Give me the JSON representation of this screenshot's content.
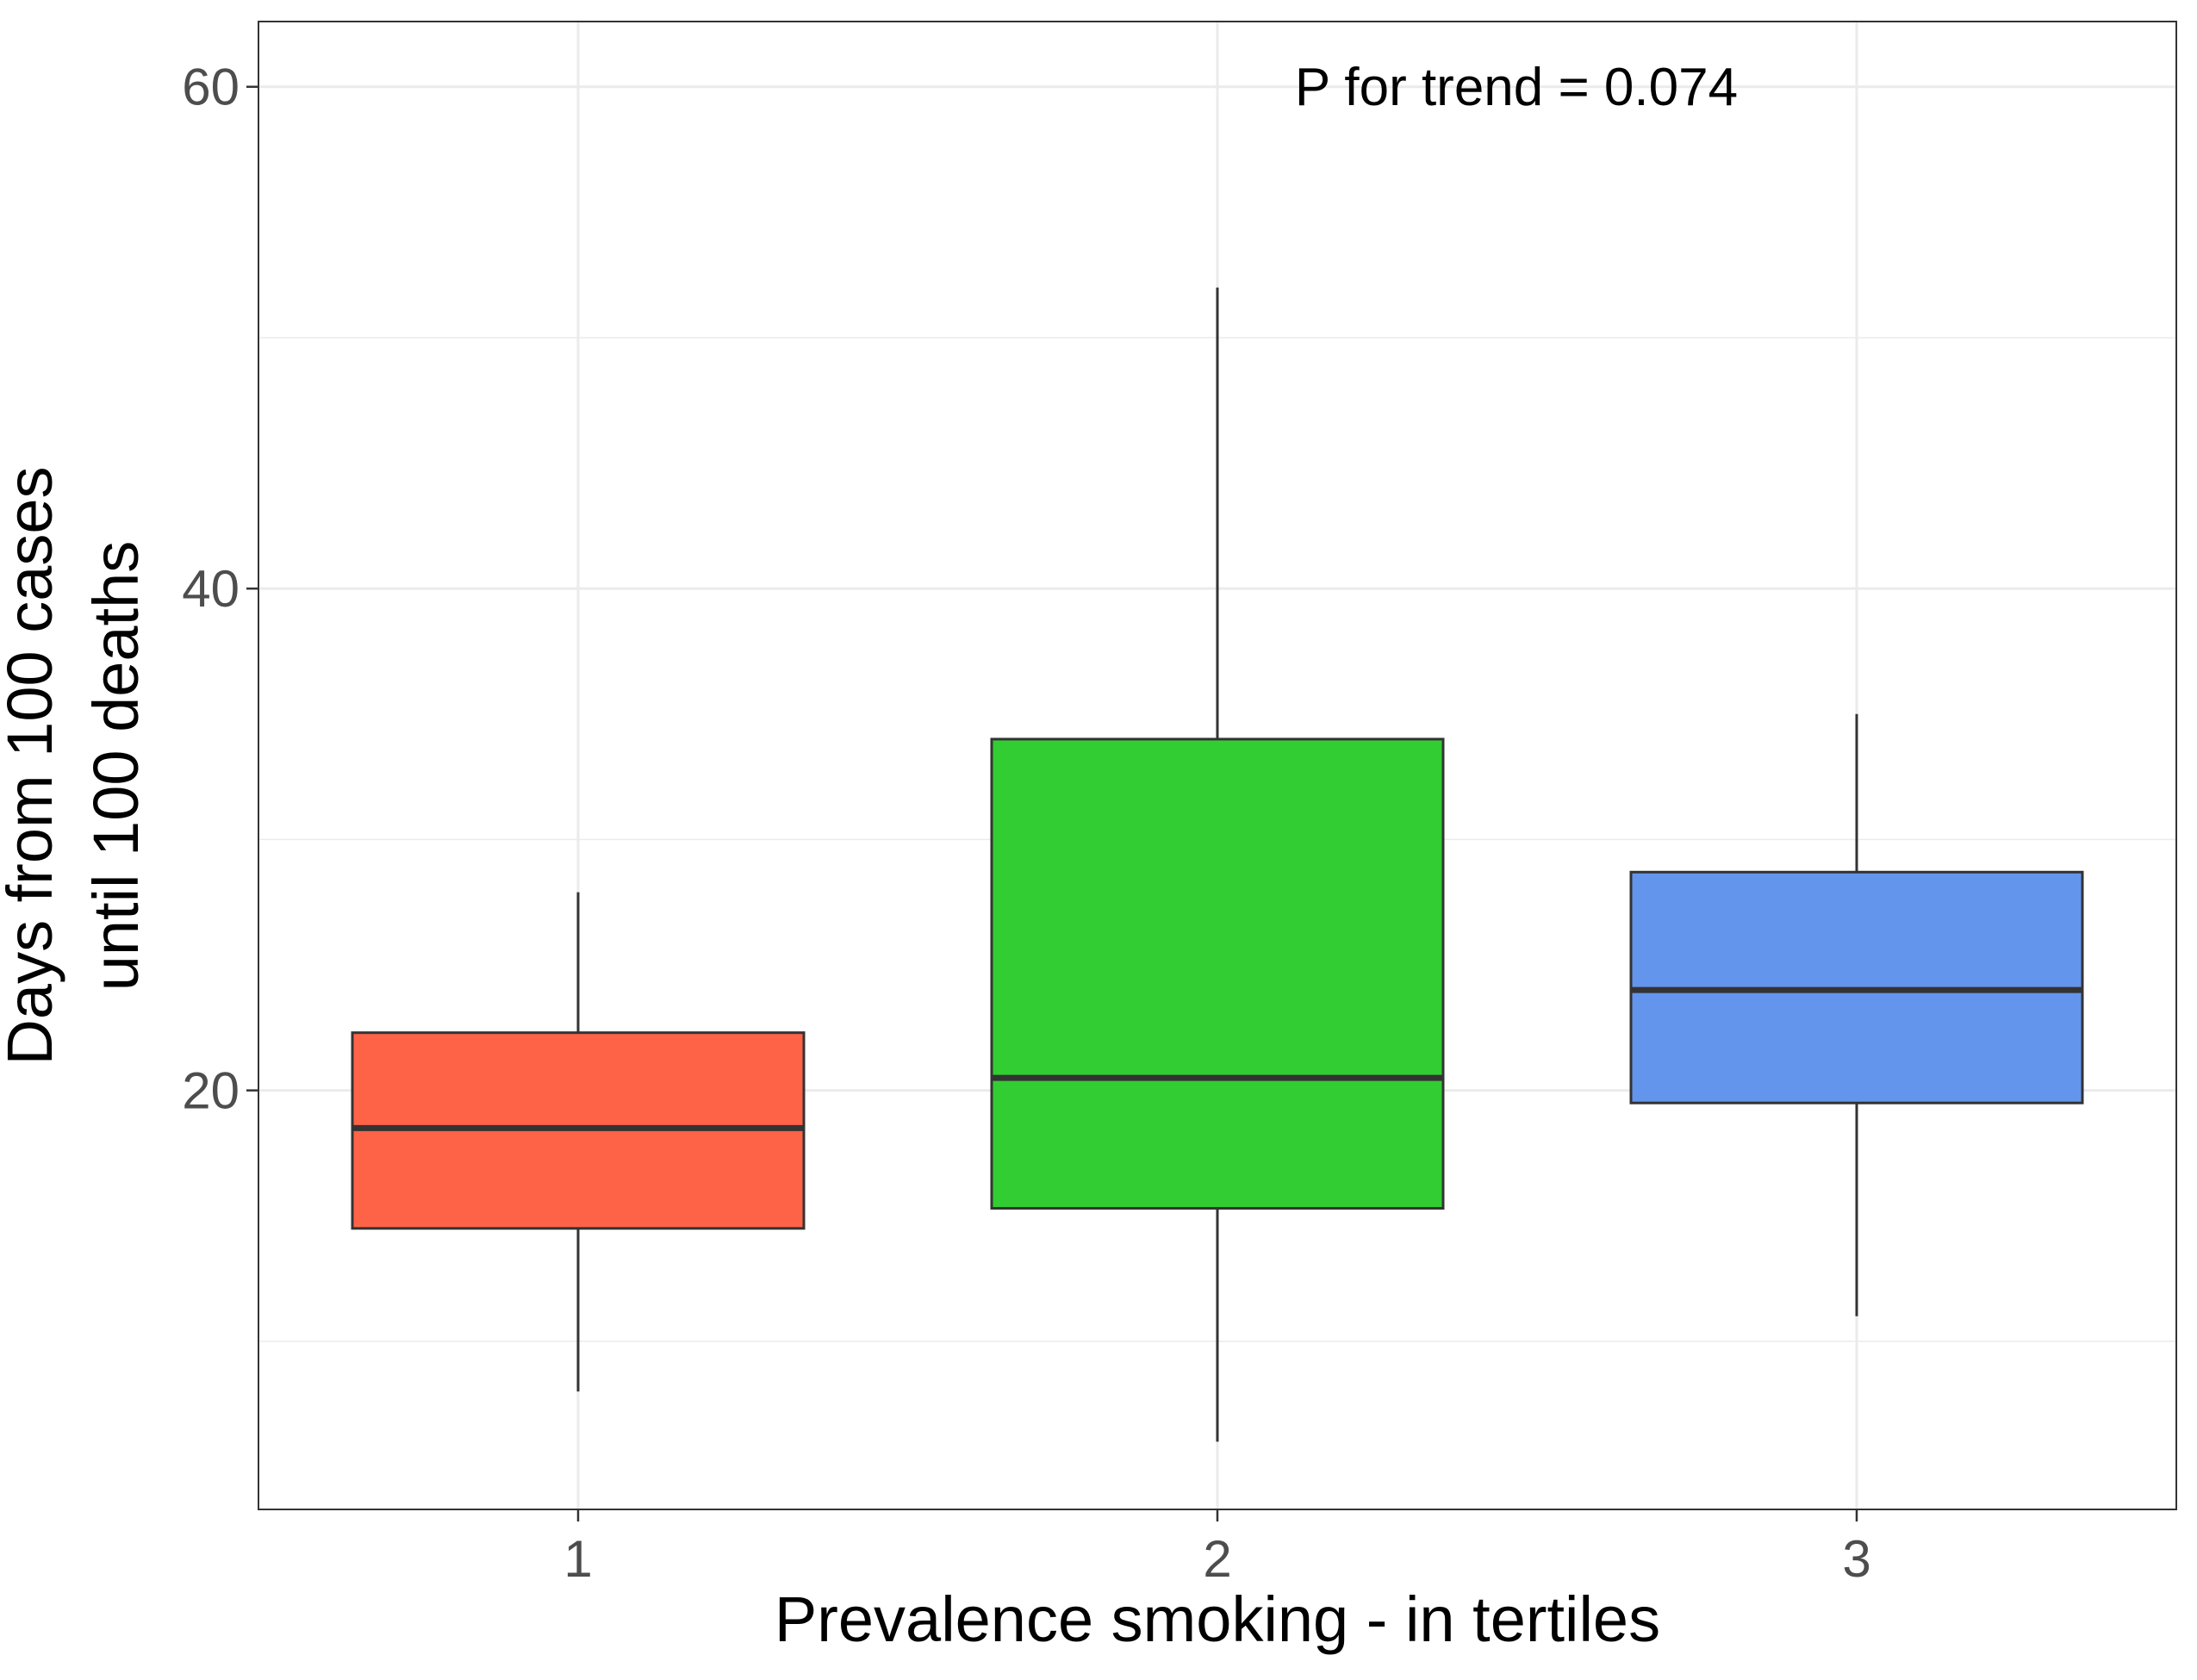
{
  "chart_data": {
    "type": "boxplot",
    "title": "",
    "xlabel": "Prevalence smoking - in tertiles",
    "ylabel_lines": [
      "Days from 100 cases",
      "until 100 deaths"
    ],
    "categories": [
      "1",
      "2",
      "3"
    ],
    "ylim": [
      3.3,
      62.6
    ],
    "y_ticks": [
      20,
      40,
      60
    ],
    "y_minor_ticks": [
      10,
      30,
      50
    ],
    "grid": true,
    "legend": "none",
    "annotation": "P for trend = 0.074",
    "boxes": [
      {
        "category": "1",
        "whisker_low": 8.0,
        "q1": 14.5,
        "median": 18.5,
        "q3": 22.3,
        "whisker_high": 27.9,
        "color": "#FF6347"
      },
      {
        "category": "2",
        "whisker_low": 6.0,
        "q1": 15.3,
        "median": 20.5,
        "q3": 34.0,
        "whisker_high": 52.0,
        "color": "#32CD32"
      },
      {
        "category": "3",
        "whisker_low": 11.0,
        "q1": 19.5,
        "median": 24.0,
        "q3": 28.7,
        "whisker_high": 35.0,
        "color": "#6495ED"
      }
    ]
  }
}
